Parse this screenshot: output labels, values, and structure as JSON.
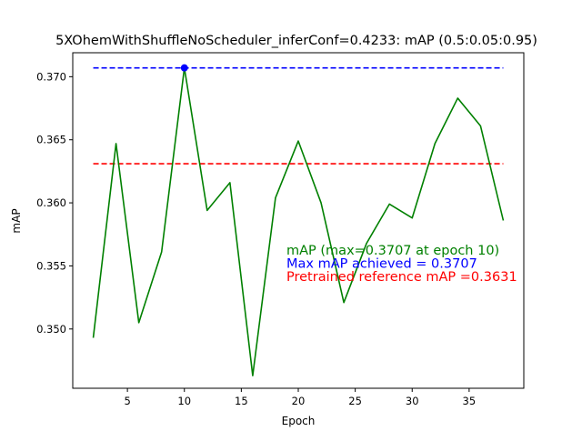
{
  "chart_data": {
    "type": "line",
    "title": "5XOhemWithShuffleNoScheduler_inferConf=0.4233:  mAP (0.5:0.05:0.95)",
    "xlabel": "Epoch",
    "ylabel": "mAP",
    "xlim": [
      0.2,
      39.8
    ],
    "ylim": [
      0.3453,
      0.3719
    ],
    "x_ticks": [
      5,
      10,
      15,
      20,
      25,
      30,
      35
    ],
    "y_ticks": [
      0.35,
      0.355,
      0.36,
      0.365,
      0.37
    ],
    "y_tick_labels": [
      "0.350",
      "0.355",
      "0.360",
      "0.365",
      "0.370"
    ],
    "grid": false,
    "series": [
      {
        "color": "#008000",
        "style": "solid",
        "x": [
          2,
          4,
          6,
          8,
          10,
          12,
          14,
          16,
          18,
          20,
          22,
          24,
          26,
          28,
          30,
          32,
          34,
          36,
          38
        ],
        "y": [
          0.3493,
          0.3647,
          0.3505,
          0.3561,
          0.3707,
          0.3594,
          0.3616,
          0.3463,
          0.3604,
          0.3649,
          0.36,
          0.3521,
          0.3568,
          0.3599,
          0.3588,
          0.3647,
          0.3683,
          0.3661,
          0.3586
        ]
      },
      {
        "color": "#0000ff",
        "style": "dashed",
        "x": [
          2,
          38
        ],
        "y": [
          0.3707,
          0.3707
        ]
      },
      {
        "color": "#ff0000",
        "style": "dashed",
        "x": [
          2,
          38
        ],
        "y": [
          0.3631,
          0.3631
        ]
      }
    ],
    "marker": {
      "x": 10,
      "y": 0.3707,
      "color": "#0000ff"
    },
    "annotations": [
      {
        "text": "mAP (max=0.3707 at epoch 10)",
        "color": "#008000"
      },
      {
        "text": "Max mAP achieved = 0.3707",
        "color": "#0000ff"
      },
      {
        "text": "Pretrained reference mAP =0.3631",
        "color": "#ff0000"
      }
    ]
  }
}
